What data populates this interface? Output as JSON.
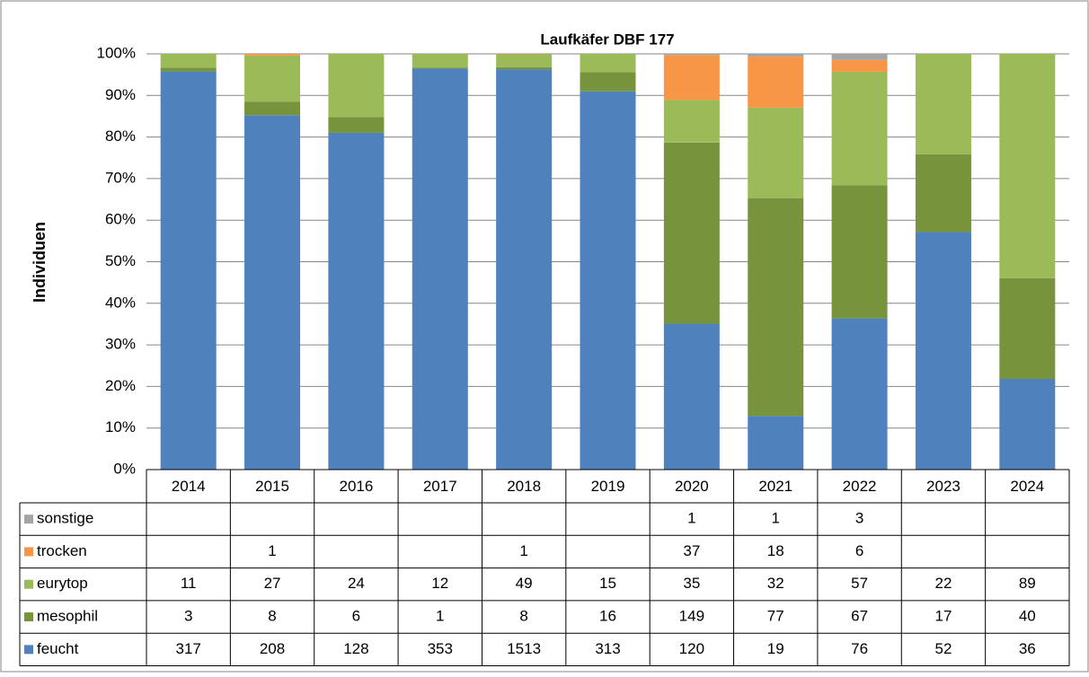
{
  "chart_data": {
    "type": "stacked_bar_100",
    "title": "Laufkäfer DBF 177",
    "y_label": "Individuen",
    "categories": [
      "2014",
      "2015",
      "2016",
      "2017",
      "2018",
      "2019",
      "2020",
      "2021",
      "2022",
      "2023",
      "2024"
    ],
    "series": [
      {
        "name": "feucht",
        "color": "#4f81bd",
        "values": [
          317,
          208,
          128,
          353,
          1513,
          313,
          120,
          19,
          76,
          52,
          36
        ]
      },
      {
        "name": "mesophil",
        "color": "#77933c",
        "values": [
          3,
          8,
          6,
          1,
          8,
          16,
          149,
          77,
          67,
          17,
          40
        ]
      },
      {
        "name": "eurytop",
        "color": "#9bbb59",
        "values": [
          11,
          27,
          24,
          12,
          49,
          15,
          35,
          32,
          57,
          22,
          89
        ]
      },
      {
        "name": "trocken",
        "color": "#f79646",
        "values": [
          null,
          1,
          null,
          null,
          1,
          null,
          37,
          18,
          6,
          null,
          null
        ]
      },
      {
        "name": "sonstige",
        "color": "#a5a5a5",
        "values": [
          null,
          null,
          null,
          null,
          null,
          null,
          1,
          1,
          3,
          null,
          null
        ]
      }
    ],
    "ylim": [
      0,
      100
    ],
    "yticks": [
      {
        "value": 0,
        "label": "0%"
      },
      {
        "value": 10,
        "label": "10%"
      },
      {
        "value": 20,
        "label": "20%"
      },
      {
        "value": 30,
        "label": "30%"
      },
      {
        "value": 40,
        "label": "40%"
      },
      {
        "value": 50,
        "label": "50%"
      },
      {
        "value": 60,
        "label": "60%"
      },
      {
        "value": 70,
        "label": "70%"
      },
      {
        "value": 80,
        "label": "80%"
      },
      {
        "value": 90,
        "label": "90%"
      },
      {
        "value": 100,
        "label": "100%"
      }
    ],
    "grid": true
  }
}
